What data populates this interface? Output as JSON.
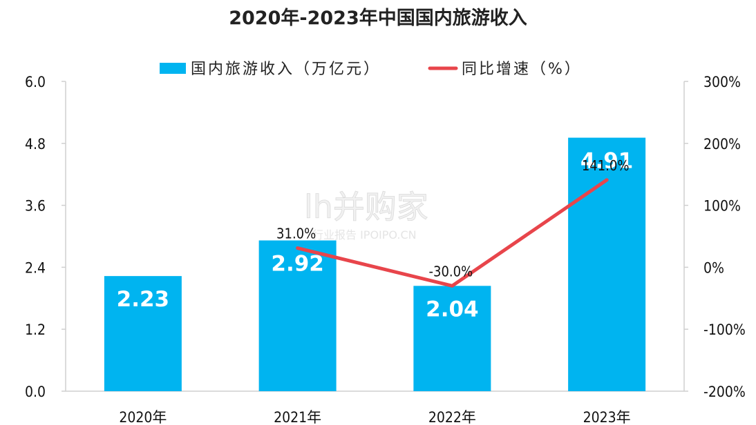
{
  "title": "2020年-2023年中国国内旅游收入",
  "colors": {
    "bar": "#00b4f0",
    "line": "#e8454b",
    "axis": "#cfcfcf",
    "text": "#111111"
  },
  "watermark": {
    "main": "lh并购家",
    "sub": "行业报告 IPOIPO.CN"
  },
  "chart_data": {
    "type": "bar",
    "title": "2020年-2023年中国国内旅游收入",
    "categories": [
      "2020年",
      "2021年",
      "2022年",
      "2023年"
    ],
    "series": [
      {
        "name": "国内旅游收入（万亿元）",
        "type": "bar",
        "axis": "left",
        "values": [
          2.23,
          2.92,
          2.04,
          4.91
        ],
        "labels": [
          "2.23",
          "2.92",
          "2.04",
          "4.91"
        ]
      },
      {
        "name": "同比增速（%）",
        "type": "line",
        "axis": "right",
        "values": [
          null,
          31.0,
          -30.0,
          141.0
        ],
        "labels": [
          "",
          "31.0%",
          "-30.0%",
          "141.0%"
        ]
      }
    ],
    "y_left": {
      "min": 0,
      "max": 6.0,
      "ticks": [
        0.0,
        1.2,
        2.4,
        3.6,
        4.8,
        6.0
      ],
      "tick_labels": [
        "0.0",
        "1.2",
        "2.4",
        "3.6",
        "4.8",
        "6.0"
      ]
    },
    "y_right": {
      "min": -200,
      "max": 300,
      "ticks": [
        -200,
        -100,
        0,
        100,
        200,
        300
      ],
      "tick_labels": [
        "-200%",
        "-100%",
        "0%",
        "100%",
        "200%",
        "300%"
      ]
    },
    "legend_position": "top-center",
    "grid": false
  }
}
